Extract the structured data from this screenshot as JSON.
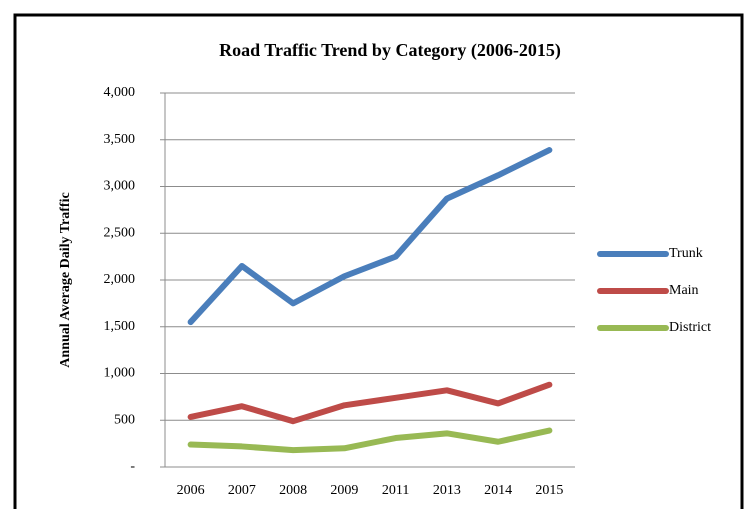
{
  "chart_data": {
    "type": "line",
    "title": "Road Traffic Trend by Category (2006-2015)",
    "y_label": "Annual Average Daily Traffic",
    "categories": [
      "2006",
      "2007",
      "2008",
      "2009",
      "2011",
      "2013",
      "2014",
      "2015"
    ],
    "series": [
      {
        "name": "Trunk",
        "color": "#4a7ebb",
        "values": [
          1550,
          2150,
          1750,
          2040,
          2250,
          2870,
          3120,
          3390
        ]
      },
      {
        "name": "Main",
        "color": "#be4b48",
        "values": [
          535,
          650,
          490,
          660,
          740,
          820,
          680,
          880
        ]
      },
      {
        "name": "District",
        "color": "#98b954",
        "values": [
          240,
          220,
          180,
          200,
          310,
          360,
          270,
          390
        ]
      }
    ],
    "ylim": [
      0,
      4000
    ],
    "yticks": [
      {
        "value": 0,
        "label": "-"
      },
      500,
      {
        "value": 1000,
        "label": "1,000"
      },
      {
        "value": 1500,
        "label": "1,500"
      },
      {
        "value": 2000,
        "label": "2,000"
      },
      {
        "value": 2500,
        "label": "2,500"
      },
      {
        "value": 3000,
        "label": "3,000"
      },
      {
        "value": 3500,
        "label": "3,500"
      },
      {
        "value": 4000,
        "label": "4,000"
      }
    ],
    "grid": true,
    "legend": "right"
  }
}
